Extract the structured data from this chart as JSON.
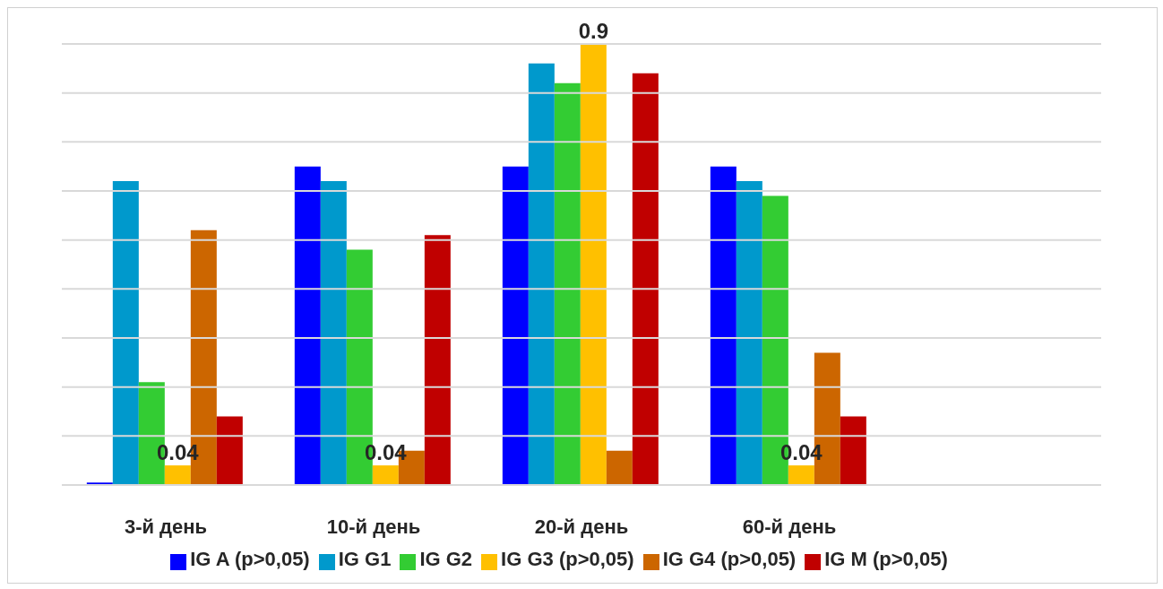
{
  "chart_data": {
    "type": "bar",
    "categories": [
      "3-й день",
      "10-й день",
      "20-й день",
      "60-й день",
      null
    ],
    "series": [
      {
        "name": "IG A (p>0,05)",
        "color": "#0000ff",
        "values": [
          0.005,
          0.65,
          0.65,
          0.65,
          null
        ]
      },
      {
        "name": "IG G1",
        "color": "#0099cc",
        "values": [
          0.62,
          0.62,
          0.86,
          0.62,
          null
        ]
      },
      {
        "name": "IG G2",
        "color": "#33cc33",
        "values": [
          0.21,
          0.48,
          0.82,
          0.59,
          null
        ]
      },
      {
        "name": "IG G3 (p>0,05)",
        "color": "#ffc000",
        "values": [
          0.04,
          0.04,
          0.9,
          0.04,
          null
        ],
        "value_labels": [
          "0.04",
          "0.04",
          "0.9",
          "0.04",
          null
        ]
      },
      {
        "name": "IG G4 (p>0,05)",
        "color": "#cc6600",
        "values": [
          0.52,
          0.07,
          0.07,
          0.27,
          null
        ]
      },
      {
        "name": "IG M (p>0,05)",
        "color": "#c00000",
        "values": [
          0.14,
          0.51,
          0.84,
          0.14,
          null
        ]
      }
    ],
    "ylim": [
      0,
      0.9
    ],
    "yticks": [
      {
        "value": 0,
        "label": null
      },
      {
        "value": 0.1,
        "label": null
      },
      {
        "value": 0.2,
        "label": null
      },
      {
        "value": 0.3,
        "label": null
      },
      {
        "value": 0.4,
        "label": null
      },
      {
        "value": 0.5,
        "label": null
      },
      {
        "value": 0.6,
        "label": null
      },
      {
        "value": 0.7,
        "label": null
      },
      {
        "value": 0.8,
        "label": null
      },
      {
        "value": 0.9,
        "label": null
      }
    ],
    "tick_labels": "x",
    "grid": "y",
    "legend": "bottom"
  }
}
